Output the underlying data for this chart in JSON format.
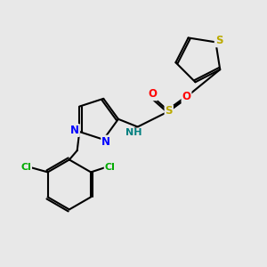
{
  "background_color": "#e8e8e8",
  "bond_color": "#000000",
  "N_color": "#0000ff",
  "S_color": "#bbaa00",
  "O_color": "#ff0000",
  "Cl_color": "#00aa00",
  "NH_color": "#008080",
  "figsize": [
    3.0,
    3.0
  ],
  "dpi": 100,
  "xlim": [
    0,
    10
  ],
  "ylim": [
    0,
    10
  ]
}
